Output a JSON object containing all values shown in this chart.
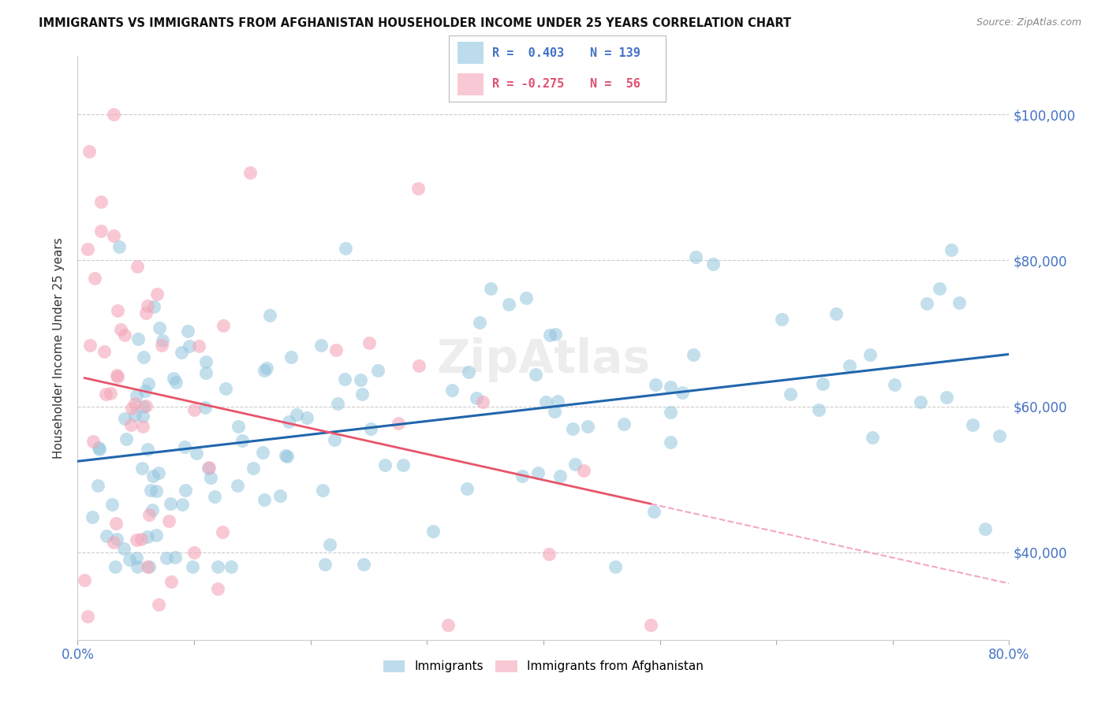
{
  "title": "IMMIGRANTS VS IMMIGRANTS FROM AFGHANISTAN HOUSEHOLDER INCOME UNDER 25 YEARS CORRELATION CHART",
  "source": "Source: ZipAtlas.com",
  "ylabel": "Householder Income Under 25 years",
  "xmin": 0.0,
  "xmax": 0.8,
  "ymin": 28000,
  "ymax": 108000,
  "yticks": [
    40000,
    60000,
    80000,
    100000
  ],
  "ytick_labels": [
    "$40,000",
    "$60,000",
    "$80,000",
    "$100,000"
  ],
  "blue_color": "#92c5de",
  "pink_color": "#f4a6b8",
  "blue_line_color": "#2166ac",
  "pink_line_color": "#e8546a",
  "pink_line_dashed_color": "#f4a6c8",
  "blue_r": 0.403,
  "pink_r": -0.275,
  "blue_n": 139,
  "pink_n": 56,
  "watermark": "ZipAtlas",
  "legend_blue_r": "R =  0.403",
  "legend_blue_n": "N = 139",
  "legend_pink_r": "R = -0.275",
  "legend_pink_n": "N =  56"
}
